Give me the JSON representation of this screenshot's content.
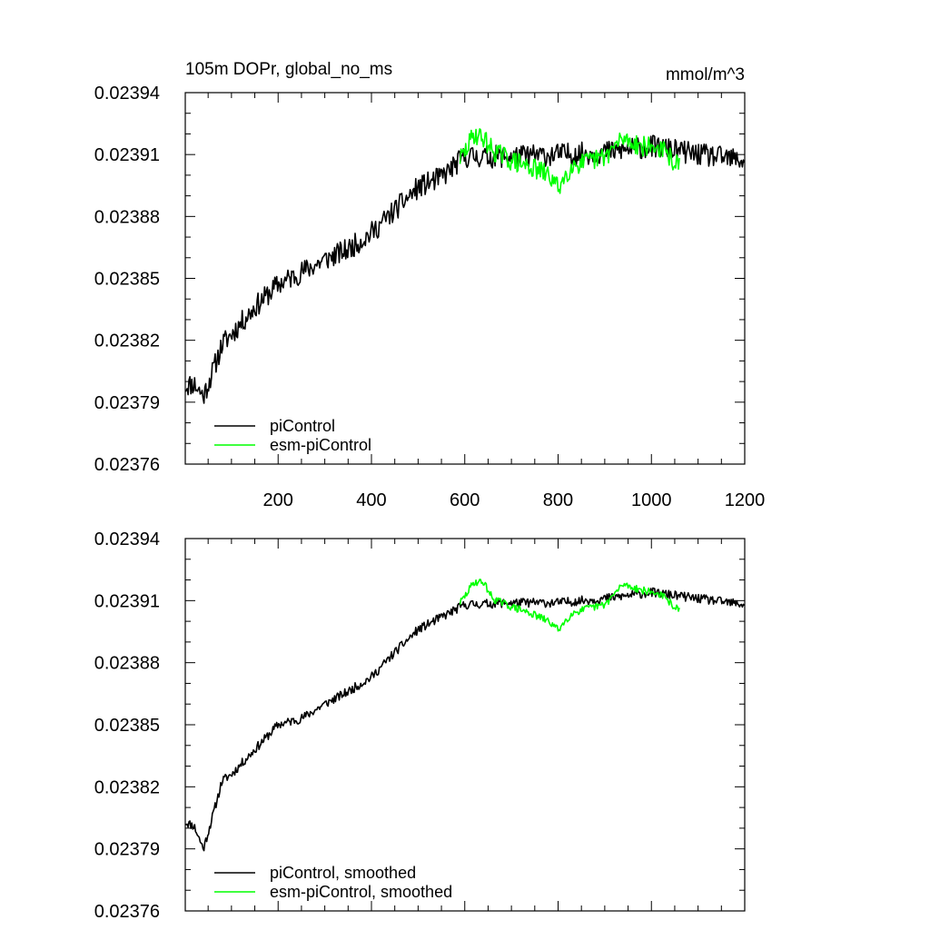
{
  "chart_data": [
    {
      "type": "line",
      "panel": "top",
      "title": "105m DOPr, global_no_ms",
      "units": "mmol/m^3",
      "xlim": [
        1,
        1200
      ],
      "ylim": [
        0.02376,
        0.02394
      ],
      "x_ticks": [
        200,
        400,
        600,
        800,
        1000,
        1200
      ],
      "x_tick_labels": [
        "200",
        "400",
        "600",
        "800",
        "1000",
        "1200"
      ],
      "y_ticks": [
        0.02376,
        0.02379,
        0.02382,
        0.02385,
        0.02388,
        0.02391,
        0.02394
      ],
      "y_tick_labels": [
        "0.02376",
        "0.02379",
        "0.02382",
        "0.02385",
        "0.02388",
        "0.02391",
        "0.02394"
      ],
      "legend_position": "bottom-left",
      "series": [
        {
          "name": "piControl",
          "color": "#000000",
          "noise": 5.5e-06,
          "seed": 11,
          "x": [
            1,
            20,
            40,
            60,
            80,
            100,
            150,
            200,
            250,
            300,
            350,
            400,
            450,
            500,
            550,
            600,
            700,
            800,
            900,
            1000,
            1100,
            1200
          ],
          "values": [
            0.023798,
            0.023799,
            0.023793,
            0.023805,
            0.023818,
            0.023823,
            0.023836,
            0.023847,
            0.023853,
            0.023859,
            0.023864,
            0.023872,
            0.023883,
            0.023894,
            0.023899,
            0.023909,
            0.023909,
            0.02391,
            0.023911,
            0.023914,
            0.02391,
            0.023907
          ]
        },
        {
          "name": "esm-piControl",
          "color": "#00ff00",
          "noise": 5e-06,
          "seed": 29,
          "x": [
            590,
            600,
            620,
            640,
            660,
            700,
            740,
            780,
            800,
            830,
            860,
            900,
            940,
            980,
            1020,
            1060
          ],
          "values": [
            0.023908,
            0.023911,
            0.02392,
            0.023918,
            0.023912,
            0.023907,
            0.023904,
            0.0239,
            0.023894,
            0.023905,
            0.023906,
            0.023909,
            0.023918,
            0.023914,
            0.023913,
            0.023904
          ]
        }
      ]
    },
    {
      "type": "line",
      "panel": "bottom",
      "title": "",
      "units": "",
      "xlim": [
        1,
        1200
      ],
      "ylim": [
        0.02376,
        0.02394
      ],
      "x_ticks": [
        200,
        400,
        600,
        800,
        1000,
        1200
      ],
      "y_ticks": [
        0.02376,
        0.02379,
        0.02382,
        0.02385,
        0.02388,
        0.02391,
        0.02394
      ],
      "y_tick_labels": [
        "0.02376",
        "0.02379",
        "0.02382",
        "0.02385",
        "0.02388",
        "0.02391",
        "0.02394"
      ],
      "legend_position": "bottom-left",
      "series": [
        {
          "name": "piControl, smoothed",
          "color": "#000000",
          "noise": 2.2e-06,
          "seed": 11,
          "x": [
            1,
            20,
            40,
            60,
            80,
            100,
            150,
            200,
            250,
            300,
            350,
            400,
            450,
            500,
            550,
            600,
            700,
            800,
            900,
            1000,
            1100,
            1200
          ],
          "values": [
            0.023803,
            0.023801,
            0.02379,
            0.023806,
            0.023823,
            0.023826,
            0.023838,
            0.02385,
            0.023853,
            0.02386,
            0.023866,
            0.023873,
            0.023885,
            0.023896,
            0.023902,
            0.023908,
            0.023909,
            0.023909,
            0.023911,
            0.023914,
            0.023911,
            0.023908
          ]
        },
        {
          "name": "esm-piControl, smoothed",
          "color": "#00ff00",
          "noise": 1.8e-06,
          "seed": 29,
          "x": [
            590,
            600,
            620,
            640,
            660,
            700,
            740,
            780,
            800,
            830,
            860,
            900,
            940,
            980,
            1020,
            1060
          ],
          "values": [
            0.023909,
            0.023912,
            0.023919,
            0.023919,
            0.023911,
            0.023907,
            0.023904,
            0.0239,
            0.023896,
            0.023904,
            0.023906,
            0.023908,
            0.023918,
            0.023915,
            0.023913,
            0.023905
          ]
        }
      ]
    }
  ]
}
